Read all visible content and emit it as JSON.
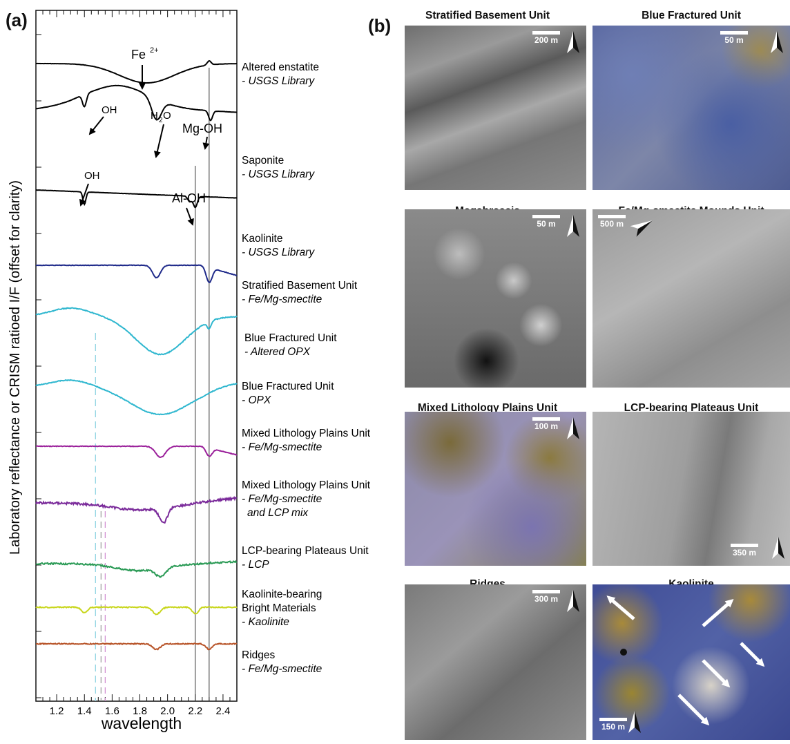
{
  "panel_a": {
    "label": "(a)",
    "ylabel": "Laboratory reflectance or CRISM ratioed I/F (offset for clarity)",
    "xlabel": "wavelength",
    "ticks": [
      "1.2",
      "1.4",
      "1.6",
      "1.8",
      "2.0",
      "2.2",
      "2.4"
    ],
    "xlim": [
      1.05,
      2.5
    ],
    "annotations": {
      "fe": "Fe",
      "fe_sup": "2+",
      "oh1": "OH",
      "h2o_h": "H",
      "h2o_sub": "2",
      "h2o_o": "O",
      "mgoh": "Mg-OH",
      "oh2": "OH",
      "aloh": "Al-OH"
    },
    "spectra": [
      {
        "name": "Altered enstatite",
        "source": "- USGS Library",
        "color": "#000000"
      },
      {
        "name": "Saponite",
        "source": "- USGS Library",
        "color": "#000000"
      },
      {
        "name": "Kaolinite",
        "source": "- USGS Library",
        "color": "#000000"
      },
      {
        "name": "Stratified Basement Unit",
        "source": "- Fe/Mg-smectite",
        "color": "#1f2a8a"
      },
      {
        "name": "Blue Fractured Unit",
        "source": "- Altered OPX",
        "color": "#2fb7cf"
      },
      {
        "name": "Blue Fractured Unit",
        "source": "- OPX",
        "color": "#2fb7cf"
      },
      {
        "name": "Mixed Lithology Plains Unit",
        "source": "- Fe/Mg-smectite",
        "color": "#9a1f9a"
      },
      {
        "name": "Mixed Lithology Plains Unit",
        "source": "- Fe/Mg-smectite",
        "source2": "and LCP mix",
        "color": "#7a2a9a"
      },
      {
        "name": "LCP-bearing Plateaus Unit",
        "source": "- LCP",
        "color": "#2a9a55"
      },
      {
        "name": "Kaolinite-bearing",
        "name2": "Bright Materials",
        "source": "- Kaolinite",
        "color": "#c8d61c"
      },
      {
        "name": "Ridges",
        "source": "- Fe/Mg-smectite",
        "color": "#b8552a"
      }
    ]
  },
  "panel_b": {
    "label": "(b)",
    "tiles": [
      {
        "title": "Stratified Basement Unit",
        "scale": "200 m",
        "style": "gray"
      },
      {
        "title": "Blue Fractured Unit",
        "scale": "50 m",
        "style": "blue"
      },
      {
        "title": "Megabreccia",
        "scale": "50 m",
        "style": "breccia"
      },
      {
        "title": "Fe/Mg-smectite Mounds Unit",
        "scale": "500 m",
        "style": "gray2"
      },
      {
        "title": "Mixed Lithology Plains Unit",
        "scale": "100 m",
        "style": "mixed"
      },
      {
        "title": "LCP-bearing Plateaus Unit",
        "scale": "350 m",
        "style": "gray3"
      },
      {
        "title": "Ridges",
        "scale": "300 m",
        "style": "gray4"
      },
      {
        "title": "Kaolinite",
        "scale": "150 m",
        "style": "kaolinite"
      }
    ]
  }
}
